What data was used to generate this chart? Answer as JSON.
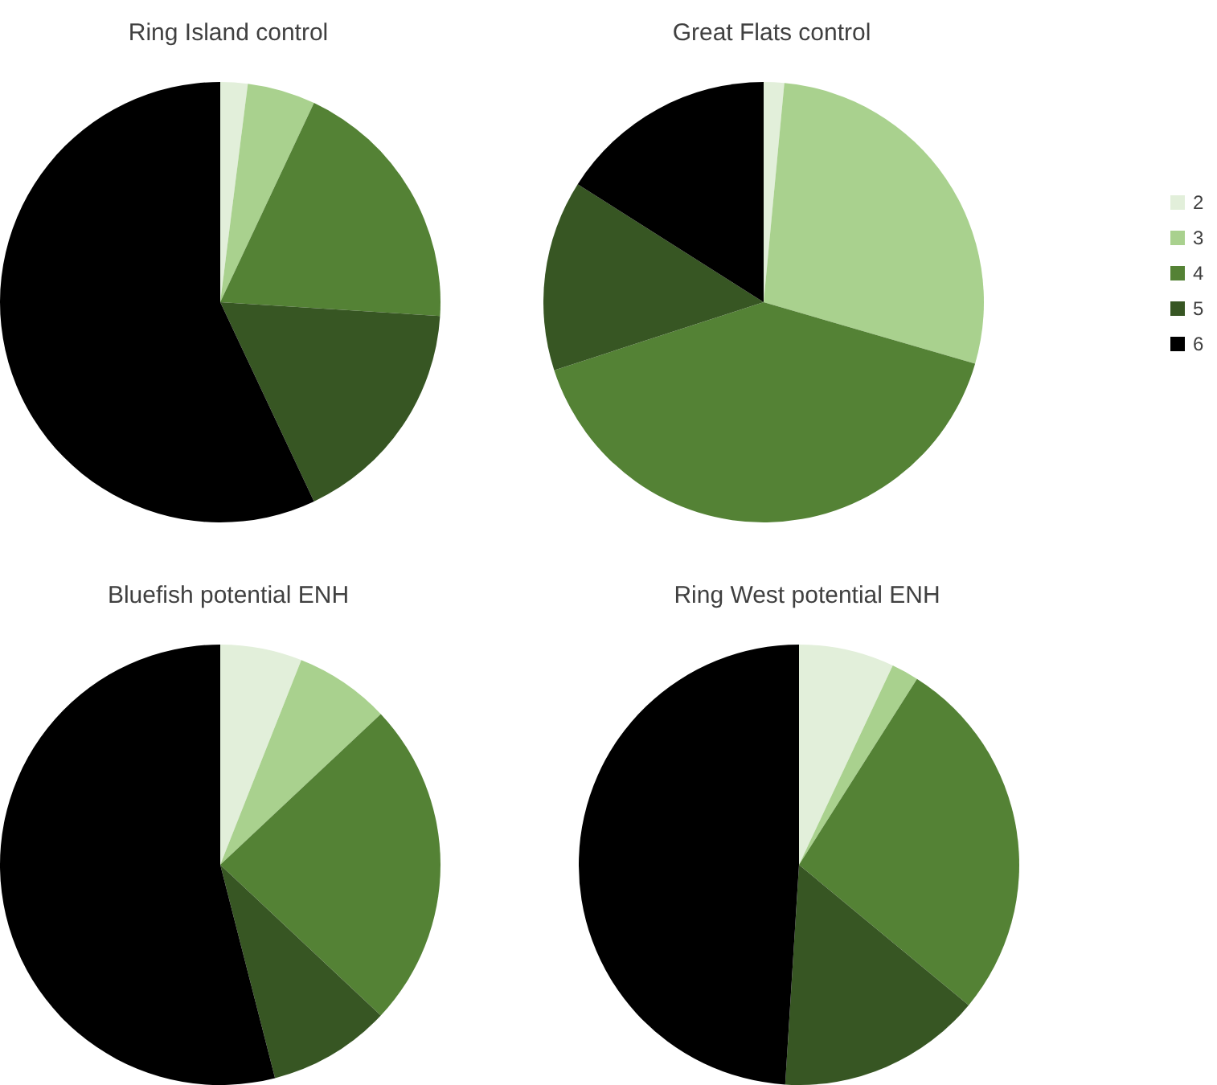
{
  "chart_data": [
    {
      "type": "pie",
      "title": "Ring Island control",
      "categories": [
        null,
        null,
        null,
        null,
        null
      ],
      "values": [
        2,
        5,
        19,
        17,
        57
      ],
      "colors": [
        "#e2efda",
        "#a9d18e",
        "#548235",
        "#375623",
        "#000000"
      ],
      "legend": false
    },
    {
      "type": "pie",
      "title": "Great Flats control",
      "categories": [
        "2",
        "3",
        "4",
        "5",
        "6"
      ],
      "values": [
        1.5,
        28,
        40.5,
        14,
        16
      ],
      "colors": [
        "#e2efda",
        "#a9d18e",
        "#548235",
        "#375623",
        "#000000"
      ],
      "legend": "right"
    },
    {
      "type": "pie",
      "title": "Bluefish potential ENH",
      "categories": [
        null,
        null,
        null,
        null,
        null
      ],
      "values": [
        6,
        7,
        24,
        9,
        54
      ],
      "colors": [
        "#e2efda",
        "#a9d18e",
        "#548235",
        "#375623",
        "#000000"
      ],
      "legend": false
    },
    {
      "type": "pie",
      "title": "Ring West potential ENH",
      "categories": [
        null,
        null,
        null,
        null,
        null
      ],
      "values": [
        7,
        2,
        27,
        15,
        49
      ],
      "colors": [
        "#e2efda",
        "#a9d18e",
        "#548235",
        "#375623",
        "#000000"
      ],
      "legend": false
    }
  ]
}
